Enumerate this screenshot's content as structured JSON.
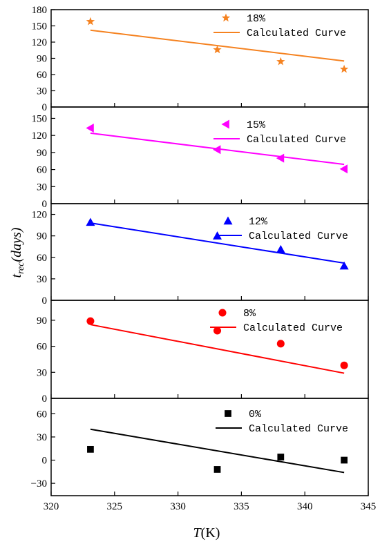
{
  "chart_data": {
    "type": "scatter",
    "layout": "stacked-panels",
    "x_axis": {
      "label_main": "T",
      "label_unit": "(K)",
      "range": [
        320,
        345
      ],
      "ticks": [
        320,
        325,
        330,
        335,
        340,
        345
      ]
    },
    "y_axis": {
      "label_main": "t",
      "label_subscript": "rec",
      "label_unit": "(days)"
    },
    "panels": [
      {
        "id": "p18",
        "legend_label": "18%",
        "fit_label": "Calculated Curve",
        "color": "#f58220",
        "marker": "star",
        "ylim": [
          0,
          180
        ],
        "yticks": [
          0,
          30,
          60,
          90,
          120,
          150,
          180
        ],
        "points": [
          {
            "x": 323.1,
            "y": 158
          },
          {
            "x": 333.1,
            "y": 106
          },
          {
            "x": 338.1,
            "y": 84
          },
          {
            "x": 343.1,
            "y": 70
          }
        ],
        "fit": [
          [
            323.1,
            142
          ],
          [
            343.1,
            85
          ]
        ]
      },
      {
        "id": "p15",
        "legend_label": "15%",
        "fit_label": "Calculated Curve",
        "color": "#ff00ff",
        "marker": "triangle-left",
        "ylim": [
          0,
          170
        ],
        "yticks": [
          0,
          30,
          60,
          90,
          120,
          150
        ],
        "points": [
          {
            "x": 323.1,
            "y": 133
          },
          {
            "x": 333.1,
            "y": 95
          },
          {
            "x": 338.1,
            "y": 80
          },
          {
            "x": 343.1,
            "y": 61
          }
        ],
        "fit": [
          [
            323.1,
            124
          ],
          [
            343.1,
            69
          ]
        ]
      },
      {
        "id": "p12",
        "legend_label": "12%",
        "fit_label": "Calculated Curve",
        "color": "#0000ff",
        "marker": "triangle-up",
        "ylim": [
          0,
          135
        ],
        "yticks": [
          0,
          30,
          60,
          90,
          120
        ],
        "points": [
          {
            "x": 323.1,
            "y": 109
          },
          {
            "x": 333.1,
            "y": 90
          },
          {
            "x": 338.1,
            "y": 71
          },
          {
            "x": 343.1,
            "y": 48
          }
        ],
        "fit": [
          [
            323.1,
            108
          ],
          [
            343.1,
            52
          ]
        ]
      },
      {
        "id": "p8",
        "legend_label": "8%",
        "fit_label": "Calculated Curve",
        "color": "#ff0000",
        "marker": "circle",
        "ylim": [
          0,
          113
        ],
        "yticks": [
          0,
          30,
          60,
          90
        ],
        "points": [
          {
            "x": 323.1,
            "y": 89
          },
          {
            "x": 333.1,
            "y": 78
          },
          {
            "x": 338.1,
            "y": 63
          },
          {
            "x": 343.1,
            "y": 38
          }
        ],
        "fit": [
          [
            323.1,
            85
          ],
          [
            343.1,
            29
          ]
        ]
      },
      {
        "id": "p0",
        "legend_label": "0%",
        "fit_label": "Calculated Curve",
        "color": "#000000",
        "marker": "square",
        "ylim": [
          -46,
          80
        ],
        "yticks": [
          -30,
          0,
          30,
          60
        ],
        "points": [
          {
            "x": 323.1,
            "y": 14
          },
          {
            "x": 333.1,
            "y": -12
          },
          {
            "x": 338.1,
            "y": 4
          },
          {
            "x": 343.1,
            "y": 0
          }
        ],
        "fit": [
          [
            323.1,
            40
          ],
          [
            343.1,
            -16
          ]
        ]
      }
    ]
  }
}
